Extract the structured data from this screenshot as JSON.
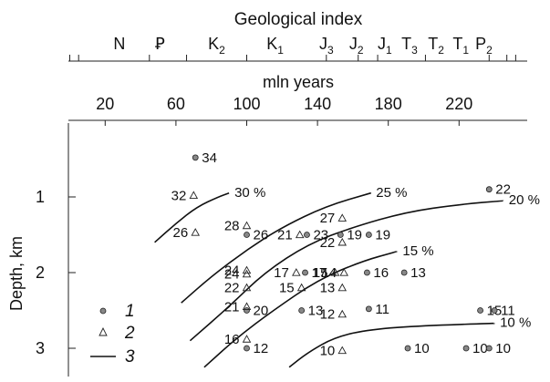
{
  "chart_data": {
    "type": "scatter",
    "top_axis_title": "Geological index",
    "period_labels": [
      {
        "label": "N",
        "x": 28
      },
      {
        "label": "Ꝑ",
        "x": 51
      },
      {
        "label": "K",
        "sub": "2",
        "x": 83
      },
      {
        "label": "K",
        "sub": "1",
        "x": 116
      },
      {
        "label": "J",
        "sub": "3",
        "x": 145
      },
      {
        "label": "J",
        "sub": "2",
        "x": 162
      },
      {
        "label": "J",
        "sub": "1",
        "x": 178
      },
      {
        "label": "T",
        "sub": "3",
        "x": 192
      },
      {
        "label": "T",
        "sub": "2",
        "x": 207
      },
      {
        "label": "T",
        "sub": "1",
        "x": 221
      },
      {
        "label": "P",
        "sub": "2",
        "x": 234
      }
    ],
    "period_boundaries": [
      0,
      5,
      45,
      66,
      100,
      145,
      163,
      174,
      201,
      237,
      247,
      252
    ],
    "xlabel": "mln years",
    "ylabel": "Depth, km",
    "x_ticks": [
      20,
      60,
      100,
      140,
      180,
      220
    ],
    "y_ticks": [
      1,
      2,
      3
    ],
    "xlim": [
      0,
      252
    ],
    "ylim": [
      0,
      3.25
    ],
    "circles": [
      {
        "x": 71,
        "y": 0.48,
        "label": "34"
      },
      {
        "x": 100,
        "y": 1.5,
        "label": "26"
      },
      {
        "x": 134,
        "y": 1.5,
        "label": "23"
      },
      {
        "x": 153,
        "y": 1.5,
        "label": "19"
      },
      {
        "x": 169,
        "y": 1.5,
        "label": "19"
      },
      {
        "x": 133,
        "y": 2.0,
        "label": "17"
      },
      {
        "x": 168,
        "y": 2.0,
        "label": "16"
      },
      {
        "x": 189,
        "y": 2.0,
        "label": "13"
      },
      {
        "x": 169,
        "y": 2.48,
        "label": "11"
      },
      {
        "x": 131,
        "y": 2.5,
        "label": "13"
      },
      {
        "x": 100,
        "y": 2.5,
        "label": "20"
      },
      {
        "x": 100,
        "y": 3.0,
        "label": "12"
      },
      {
        "x": 191,
        "y": 3.0,
        "label": "10"
      },
      {
        "x": 224,
        "y": 3.0,
        "label": "10"
      },
      {
        "x": 237,
        "y": 3.0,
        "label": "10"
      },
      {
        "x": 237,
        "y": 0.9,
        "label": "22"
      },
      {
        "x": 232,
        "y": 2.5,
        "label": "15"
      },
      {
        "x": 240,
        "y": 2.5,
        "label": "11"
      }
    ],
    "triangles": [
      {
        "x": 70,
        "y": 0.98,
        "label": "32"
      },
      {
        "x": 100,
        "y": 1.38,
        "label": "28"
      },
      {
        "x": 71,
        "y": 1.47,
        "label": "26"
      },
      {
        "x": 130,
        "y": 1.5,
        "label": "21"
      },
      {
        "x": 154,
        "y": 1.28,
        "label": "27"
      },
      {
        "x": 154,
        "y": 1.6,
        "label": "22"
      },
      {
        "x": 100,
        "y": 1.97,
        "label": "24"
      },
      {
        "x": 100,
        "y": 2.02,
        "label": "24"
      },
      {
        "x": 128,
        "y": 2.0,
        "label": "17"
      },
      {
        "x": 150,
        "y": 2.0,
        "label": "15"
      },
      {
        "x": 155,
        "y": 2.0,
        "label": "14"
      },
      {
        "x": 100,
        "y": 2.2,
        "label": "22"
      },
      {
        "x": 131,
        "y": 2.2,
        "label": "15"
      },
      {
        "x": 154,
        "y": 2.2,
        "label": "13"
      },
      {
        "x": 100,
        "y": 2.45,
        "label": "21"
      },
      {
        "x": 154,
        "y": 2.55,
        "label": "12"
      },
      {
        "x": 100,
        "y": 2.88,
        "label": "16"
      },
      {
        "x": 154,
        "y": 3.03,
        "label": "10"
      }
    ],
    "curves": [
      {
        "label": "30 %",
        "points": [
          [
            48,
            1.6
          ],
          [
            60,
            1.35
          ],
          [
            72,
            1.13
          ],
          [
            84,
            1.0
          ],
          [
            90,
            0.95
          ]
        ]
      },
      {
        "label": "25 %",
        "points": [
          [
            63,
            2.4
          ],
          [
            80,
            2.05
          ],
          [
            100,
            1.7
          ],
          [
            120,
            1.4
          ],
          [
            145,
            1.12
          ],
          [
            170,
            0.95
          ]
        ]
      },
      {
        "label": "20 %",
        "points": [
          [
            68,
            2.9
          ],
          [
            90,
            2.45
          ],
          [
            110,
            2.0
          ],
          [
            135,
            1.62
          ],
          [
            160,
            1.4
          ],
          [
            190,
            1.2
          ],
          [
            220,
            1.1
          ],
          [
            245,
            1.05
          ]
        ]
      },
      {
        "label": "15 %",
        "points": [
          [
            76,
            3.25
          ],
          [
            95,
            2.85
          ],
          [
            115,
            2.5
          ],
          [
            140,
            2.1
          ],
          [
            165,
            1.85
          ],
          [
            185,
            1.72
          ]
        ]
      },
      {
        "label": "10 %",
        "points": [
          [
            124,
            3.25
          ],
          [
            135,
            3.05
          ],
          [
            150,
            2.85
          ],
          [
            170,
            2.75
          ],
          [
            200,
            2.7
          ],
          [
            240,
            2.67
          ]
        ]
      }
    ],
    "legend": [
      {
        "symbol": "circle",
        "label": "1"
      },
      {
        "symbol": "triangle",
        "label": "2"
      },
      {
        "symbol": "line",
        "label": "3"
      }
    ]
  }
}
